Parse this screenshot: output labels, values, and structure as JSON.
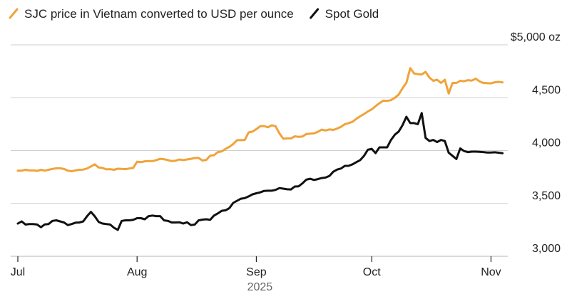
{
  "chart_data": {
    "type": "line",
    "title": "",
    "xlabel": "2025",
    "ylabel": "",
    "ylim": [
      3000,
      5000
    ],
    "y_ticks": [
      {
        "value": 5000,
        "label": "$5,000 oz"
      },
      {
        "value": 4500,
        "label": "4,500"
      },
      {
        "value": 4000,
        "label": "4,000"
      },
      {
        "value": 3500,
        "label": "3,500"
      },
      {
        "value": 3000,
        "label": "3,000"
      }
    ],
    "x_ticks": [
      {
        "value": 0,
        "label": "Jul"
      },
      {
        "value": 31,
        "label": "Aug"
      },
      {
        "value": 62,
        "label": "Sep"
      },
      {
        "value": 92,
        "label": "Oct"
      },
      {
        "value": 123,
        "label": "Nov"
      }
    ],
    "xlim": [
      0,
      127
    ],
    "series": [
      {
        "name": "SJC price in Vietnam converted to USD per ounce",
        "color": "#f0a33a",
        "x": [
          0,
          1,
          2,
          3,
          4,
          5,
          6,
          7,
          8,
          9,
          10,
          11,
          12,
          13,
          14,
          15,
          16,
          17,
          18,
          19,
          20,
          21,
          22,
          23,
          24,
          25,
          26,
          27,
          28,
          29,
          30,
          31,
          32,
          33,
          34,
          35,
          36,
          37,
          38,
          39,
          40,
          41,
          42,
          43,
          44,
          45,
          46,
          47,
          48,
          49,
          50,
          51,
          52,
          53,
          54,
          55,
          56,
          57,
          58,
          59,
          60,
          61,
          62,
          63,
          64,
          65,
          66,
          67,
          68,
          69,
          70,
          71,
          72,
          73,
          74,
          75,
          76,
          77,
          78,
          79,
          80,
          81,
          82,
          83,
          84,
          85,
          86,
          87,
          88,
          89,
          90,
          91,
          92,
          93,
          94,
          95,
          96,
          97,
          98,
          99,
          100,
          101,
          102,
          103,
          104,
          105,
          106,
          107,
          108,
          109,
          110,
          111,
          112,
          113,
          114,
          115,
          116,
          117,
          118,
          119,
          120,
          121,
          122,
          123,
          124,
          125,
          126
        ],
        "values": [
          3810,
          3810,
          3818,
          3812,
          3812,
          3808,
          3818,
          3810,
          3818,
          3826,
          3832,
          3832,
          3826,
          3810,
          3805,
          3812,
          3818,
          3820,
          3830,
          3850,
          3870,
          3840,
          3836,
          3822,
          3824,
          3818,
          3828,
          3826,
          3824,
          3830,
          3836,
          3895,
          3890,
          3898,
          3900,
          3900,
          3910,
          3922,
          3918,
          3910,
          3900,
          3904,
          3916,
          3910,
          3916,
          3922,
          3930,
          3930,
          3906,
          3912,
          3952,
          3956,
          3986,
          3992,
          4016,
          4036,
          4062,
          4098,
          4098,
          4100,
          4172,
          4180,
          4203,
          4230,
          4232,
          4220,
          4240,
          4230,
          4162,
          4112,
          4115,
          4115,
          4135,
          4130,
          4133,
          4156,
          4160,
          4163,
          4178,
          4198,
          4190,
          4200,
          4195,
          4208,
          4225,
          4250,
          4260,
          4272,
          4300,
          4324,
          4346,
          4370,
          4390,
          4420,
          4448,
          4472,
          4470,
          4477,
          4500,
          4530,
          4590,
          4642,
          4780,
          4730,
          4722,
          4720,
          4745,
          4690,
          4660,
          4670,
          4640,
          4670,
          4540,
          4640,
          4640,
          4660,
          4656,
          4666,
          4662,
          4680,
          4655,
          4640,
          4638,
          4636,
          4646,
          4650,
          4645
        ]
      },
      {
        "name": "Spot Gold",
        "color": "#111111",
        "x": [
          0,
          1,
          2,
          3,
          4,
          5,
          6,
          7,
          8,
          9,
          10,
          11,
          12,
          13,
          14,
          15,
          16,
          17,
          18,
          19,
          20,
          21,
          22,
          23,
          24,
          25,
          26,
          27,
          28,
          29,
          30,
          31,
          32,
          33,
          34,
          35,
          36,
          37,
          38,
          39,
          40,
          41,
          42,
          43,
          44,
          45,
          46,
          47,
          48,
          49,
          50,
          51,
          52,
          53,
          54,
          55,
          56,
          57,
          58,
          59,
          60,
          61,
          62,
          63,
          64,
          65,
          66,
          67,
          68,
          69,
          70,
          71,
          72,
          73,
          74,
          75,
          76,
          77,
          78,
          79,
          80,
          81,
          82,
          83,
          84,
          85,
          86,
          87,
          88,
          89,
          90,
          91,
          92,
          93,
          94,
          95,
          96,
          97,
          98,
          99,
          100,
          101,
          102,
          103,
          104,
          105,
          106,
          107,
          108,
          109,
          110,
          111,
          112,
          113,
          114,
          115,
          116,
          117,
          118,
          119,
          120,
          121,
          122,
          123,
          124,
          125,
          126
        ],
        "values": [
          3310,
          3330,
          3300,
          3305,
          3305,
          3300,
          3275,
          3302,
          3305,
          3335,
          3340,
          3330,
          3320,
          3295,
          3305,
          3318,
          3320,
          3330,
          3380,
          3420,
          3378,
          3325,
          3310,
          3305,
          3300,
          3270,
          3250,
          3335,
          3340,
          3340,
          3345,
          3360,
          3360,
          3350,
          3380,
          3385,
          3380,
          3380,
          3340,
          3335,
          3320,
          3320,
          3322,
          3310,
          3322,
          3295,
          3300,
          3340,
          3347,
          3350,
          3345,
          3385,
          3406,
          3430,
          3435,
          3456,
          3505,
          3525,
          3545,
          3550,
          3566,
          3586,
          3596,
          3605,
          3618,
          3620,
          3620,
          3628,
          3645,
          3640,
          3634,
          3632,
          3660,
          3662,
          3690,
          3725,
          3733,
          3722,
          3730,
          3740,
          3745,
          3760,
          3800,
          3820,
          3830,
          3855,
          3856,
          3870,
          3890,
          3910,
          3950,
          4008,
          4016,
          3976,
          4030,
          4030,
          4030,
          4100,
          4150,
          4180,
          4240,
          4320,
          4260,
          4260,
          4250,
          4355,
          4120,
          4090,
          4100,
          4080,
          4100,
          4090,
          3980,
          3950,
          3920,
          4020,
          3995,
          3985,
          3990,
          3990,
          3988,
          3986,
          3982,
          3982,
          3984,
          3980,
          3975
        ]
      }
    ]
  }
}
